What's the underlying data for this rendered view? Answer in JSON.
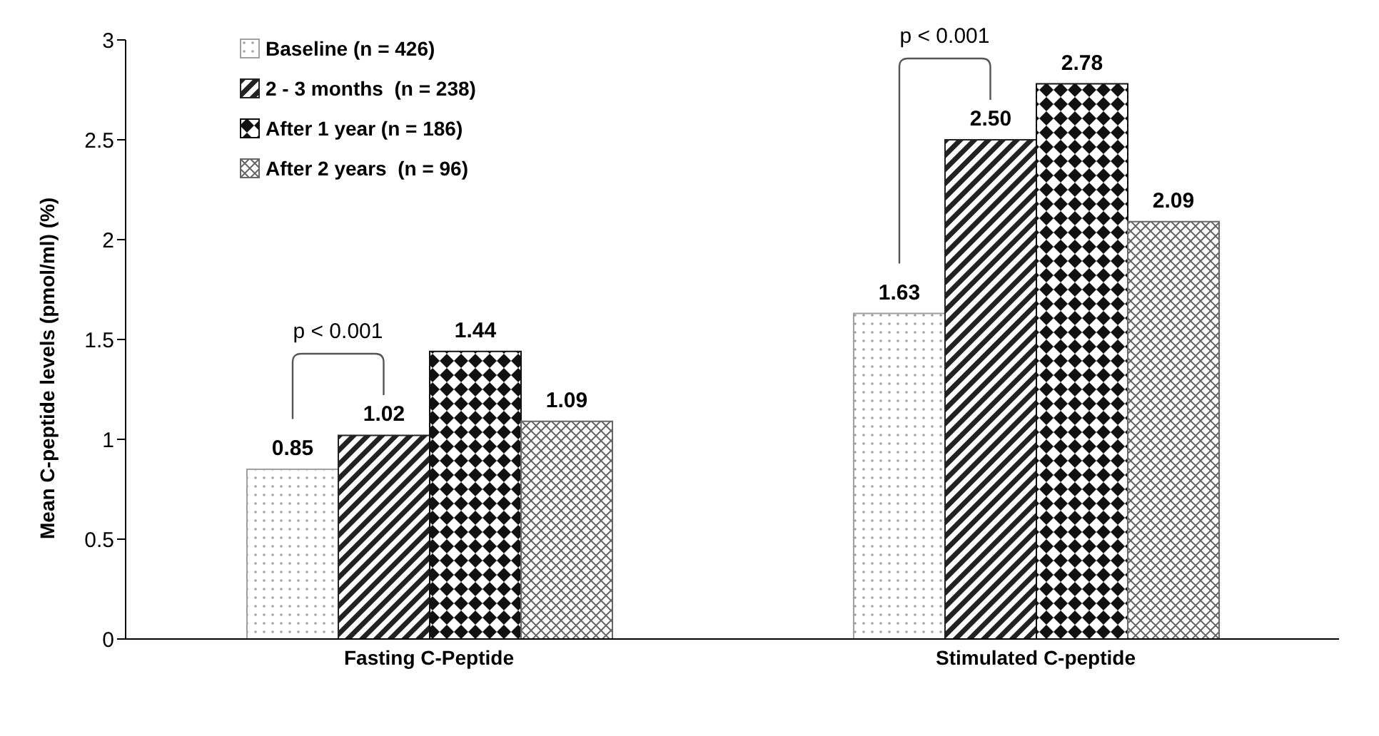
{
  "chart_data": {
    "type": "bar",
    "ylabel": "Mean C-peptide levels (pmol/ml) (%)",
    "categories": [
      "Fasting C-Peptide",
      "Stimulated C-peptide"
    ],
    "series": [
      {
        "name": "Baseline (n = 426)",
        "color": "#a0a0a0",
        "values": [
          0.85,
          1.63
        ],
        "value_labels": [
          "0.85",
          "1.63"
        ]
      },
      {
        "name": "2 - 3 months  (n = 238)",
        "color": "#222222",
        "values": [
          1.02,
          2.5
        ],
        "value_labels": [
          "1.02",
          "2.50"
        ]
      },
      {
        "name": "After 1 year (n = 186)",
        "color": "#111111",
        "values": [
          1.44,
          2.78
        ],
        "value_labels": [
          "1.44",
          "2.78"
        ]
      },
      {
        "name": "After 2 years  (n = 96)",
        "color": "#666666",
        "values": [
          1.09,
          2.09
        ],
        "value_labels": [
          "1.09",
          "2.09"
        ]
      }
    ],
    "ylim": [
      0,
      3
    ],
    "yticks": [
      0,
      0.5,
      1,
      1.5,
      2,
      2.5,
      3
    ],
    "legend": "top left",
    "annotations": [
      "p < 0.001",
      "p < 0.001"
    ]
  }
}
